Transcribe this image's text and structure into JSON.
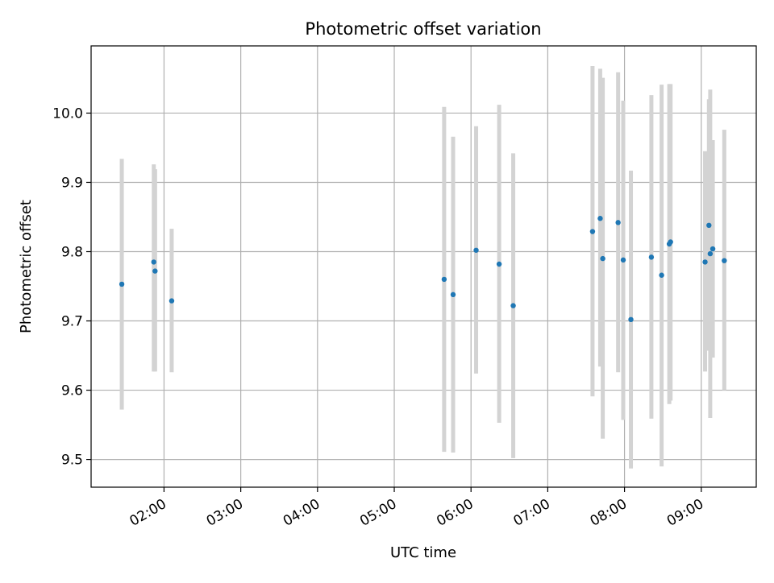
{
  "chart_data": {
    "type": "scatter",
    "title": "Photometric offset variation",
    "xlabel": "UTC time",
    "ylabel": "Photometric offset",
    "xlim": [
      "01:03",
      "09:43"
    ],
    "ylim": [
      9.46,
      10.097
    ],
    "grid": true,
    "x_ticks": [
      "02:00",
      "03:00",
      "04:00",
      "05:00",
      "06:00",
      "07:00",
      "08:00",
      "09:00"
    ],
    "y_ticks": [
      "9.5",
      "9.6",
      "9.7",
      "9.8",
      "9.9",
      "10.0"
    ],
    "colors": {
      "point": "#1f77b4",
      "errorbar": "#d3d3d3",
      "grid": "#b0b0b0"
    },
    "series": [
      {
        "points": [
          {
            "x": "01:27",
            "y": 9.753,
            "ylow": 9.572,
            "yhigh": 9.934
          },
          {
            "x": "01:52",
            "y": 9.785,
            "ylow": 9.627,
            "yhigh": 9.926
          },
          {
            "x": "01:53",
            "y": 9.772,
            "ylow": 9.627,
            "yhigh": 9.919
          },
          {
            "x": "02:06",
            "y": 9.729,
            "ylow": 9.626,
            "yhigh": 9.833
          },
          {
            "x": "05:39",
            "y": 9.76,
            "ylow": 9.511,
            "yhigh": 10.009
          },
          {
            "x": "05:46",
            "y": 9.738,
            "ylow": 9.51,
            "yhigh": 9.966
          },
          {
            "x": "06:04",
            "y": 9.802,
            "ylow": 9.624,
            "yhigh": 9.981
          },
          {
            "x": "06:22",
            "y": 9.782,
            "ylow": 9.553,
            "yhigh": 10.012
          },
          {
            "x": "06:33",
            "y": 9.722,
            "ylow": 9.502,
            "yhigh": 9.942
          },
          {
            "x": "07:35",
            "y": 9.829,
            "ylow": 9.591,
            "yhigh": 10.068
          },
          {
            "x": "07:41",
            "y": 9.848,
            "ylow": 9.634,
            "yhigh": 10.064
          },
          {
            "x": "07:43",
            "y": 9.79,
            "ylow": 9.53,
            "yhigh": 10.051
          },
          {
            "x": "07:55",
            "y": 9.842,
            "ylow": 9.626,
            "yhigh": 10.059
          },
          {
            "x": "07:59",
            "y": 9.788,
            "ylow": 9.557,
            "yhigh": 10.018
          },
          {
            "x": "08:05",
            "y": 9.702,
            "ylow": 9.487,
            "yhigh": 9.917
          },
          {
            "x": "08:21",
            "y": 9.792,
            "ylow": 9.559,
            "yhigh": 10.026
          },
          {
            "x": "08:29",
            "y": 9.766,
            "ylow": 9.49,
            "yhigh": 10.041
          },
          {
            "x": "08:35",
            "y": 9.811,
            "ylow": 9.58,
            "yhigh": 10.042
          },
          {
            "x": "08:36",
            "y": 9.814,
            "ylow": 9.585,
            "yhigh": 10.042
          },
          {
            "x": "09:03",
            "y": 9.785,
            "ylow": 9.627,
            "yhigh": 9.945
          },
          {
            "x": "09:06",
            "y": 9.838,
            "ylow": 9.657,
            "yhigh": 10.02
          },
          {
            "x": "09:07",
            "y": 9.797,
            "ylow": 9.56,
            "yhigh": 10.034
          },
          {
            "x": "09:09",
            "y": 9.804,
            "ylow": 9.647,
            "yhigh": 9.961
          },
          {
            "x": "09:18",
            "y": 9.787,
            "ylow": 9.6,
            "yhigh": 9.976
          }
        ]
      }
    ]
  }
}
